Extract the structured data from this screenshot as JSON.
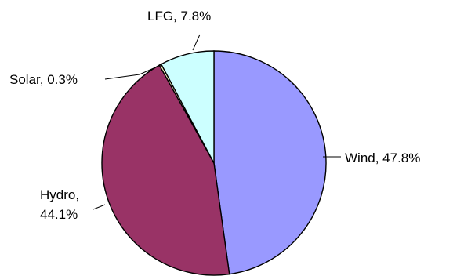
{
  "chart_data": {
    "type": "pie",
    "title": "",
    "start_angle_deg": 0,
    "direction": "clockwise",
    "slices": [
      {
        "label": "Wind",
        "value": 47.8,
        "text": "Wind, 47.8%",
        "color": "#9999ff"
      },
      {
        "label": "Hydro",
        "value": 44.1,
        "text_lines": [
          "Hydro,",
          "44.1%"
        ],
        "color": "#993366"
      },
      {
        "label": "Solar",
        "value": 0.3,
        "text": "Solar, 0.3%",
        "color": "#ffffcc"
      },
      {
        "label": "LFG",
        "value": 7.8,
        "text": "LFG, 7.8%",
        "color": "#ccffff"
      }
    ]
  }
}
